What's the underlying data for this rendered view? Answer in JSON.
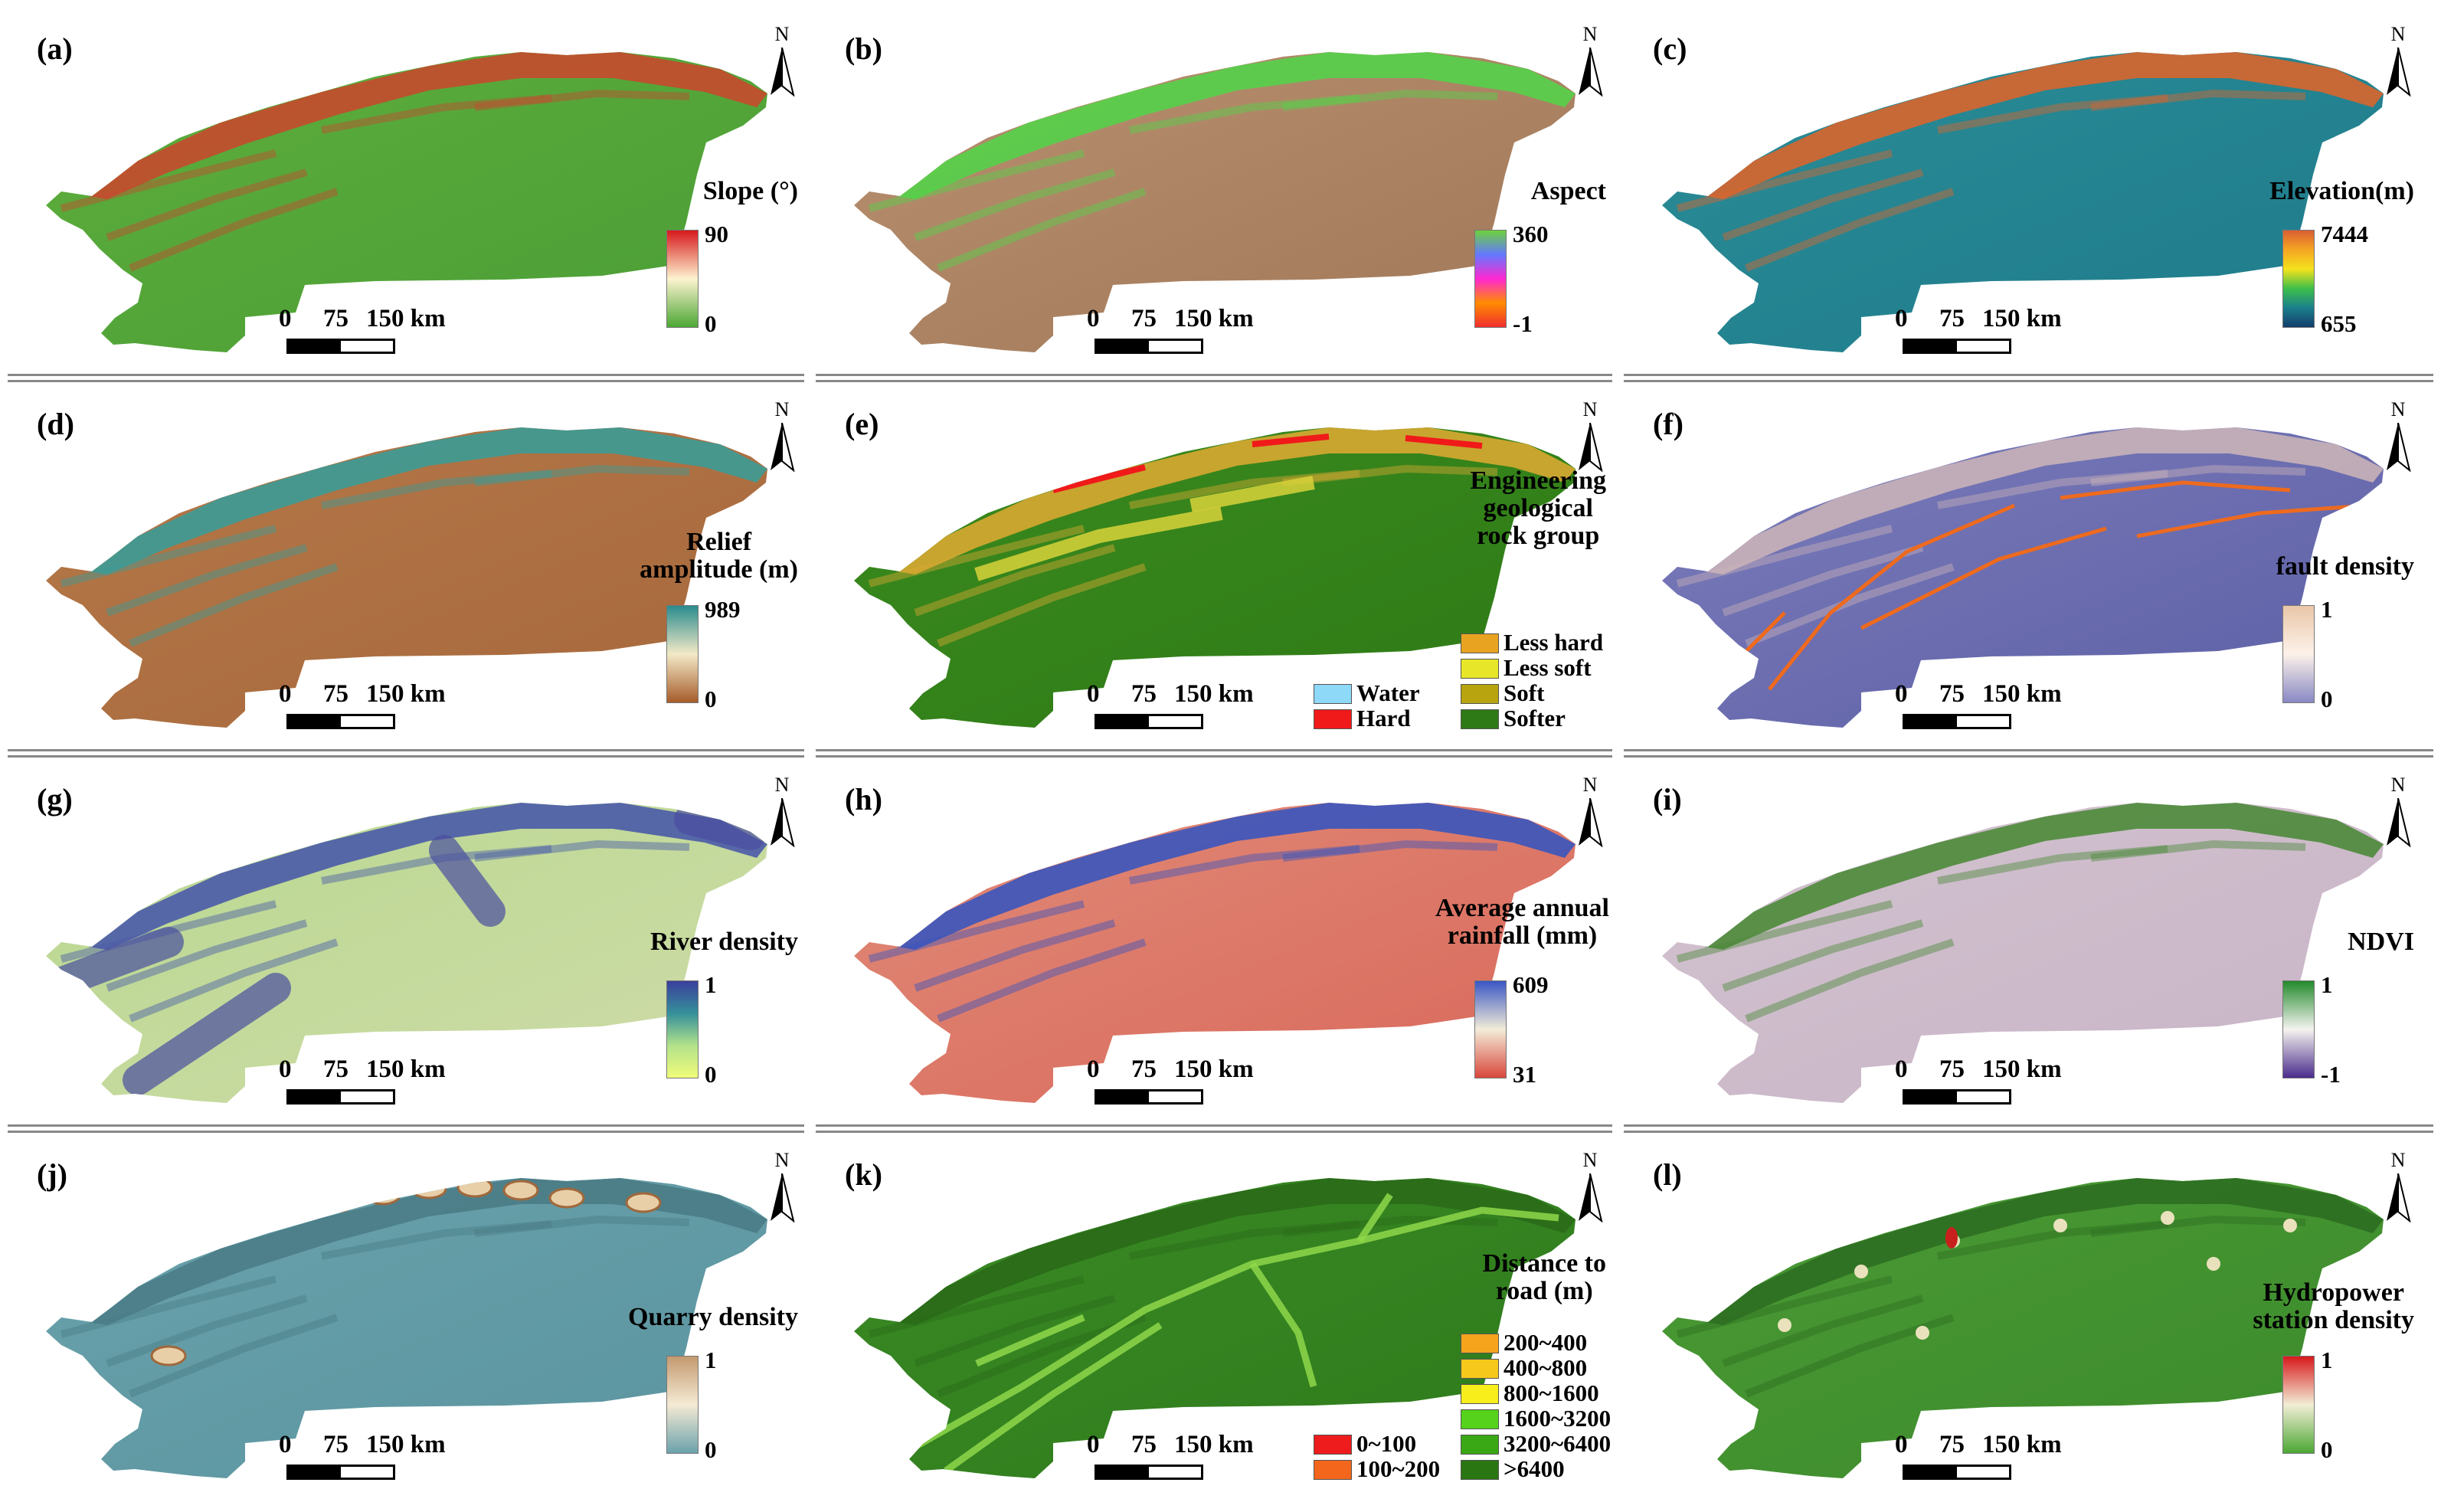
{
  "scale_bar": {
    "label_0": "0",
    "label_75": "75",
    "label_150": "150 km"
  },
  "north_label": "N",
  "panels": [
    {
      "id": "a",
      "label": "(a)",
      "legend": {
        "type": "ramp",
        "title": [
          "Slope (°)"
        ],
        "max": "90",
        "min": "0",
        "colors": [
          "#d7191c",
          "#fdf3d0",
          "#4ca734"
        ]
      },
      "fill": [
        "#4a9d36",
        "#5eae3c"
      ],
      "ridge": "#c54a2e"
    },
    {
      "id": "b",
      "label": "(b)",
      "legend": {
        "type": "ramp",
        "title": [
          "Aspect"
        ],
        "max": "360",
        "min": "-1",
        "colors": [
          "#6ed23c",
          "#6478ff",
          "#ff28d2",
          "#ff8c00",
          "#f02d2d"
        ]
      },
      "fill": [
        "#a07858",
        "#b89070"
      ],
      "ridge": "#55d24a"
    },
    {
      "id": "c",
      "label": "(c)",
      "legend": {
        "type": "ramp",
        "title": [
          "Elevation(m)"
        ],
        "max": "7444",
        "min": "655",
        "colors": [
          "#d95f33",
          "#f5a623",
          "#f4e21c",
          "#3dbf4a",
          "#1b7f8c",
          "#123e6b"
        ]
      },
      "fill": [
        "#1f7b8b",
        "#2a8c96"
      ],
      "ridge": "#d9652e"
    },
    {
      "id": "d",
      "label": "(d)",
      "legend": {
        "type": "ramp",
        "title": [
          "Relief",
          "amplitude (m)"
        ],
        "max": "989",
        "min": "0",
        "colors": [
          "#2a8b8e",
          "#f3e9c6",
          "#a65c2a"
        ]
      },
      "fill": [
        "#a6683c",
        "#b57848"
      ],
      "ridge": "#3c9b96"
    },
    {
      "id": "e",
      "label": "(e)",
      "legend": {
        "type": "categorical",
        "title": [
          "Engineering",
          "geological",
          "rock group"
        ],
        "items": [
          {
            "label": "Less hard",
            "color": "#e8a420"
          },
          {
            "label": "Less soft",
            "color": "#e8e628"
          },
          {
            "label": "Soft",
            "color": "#b8a40e"
          },
          {
            "label": "Softer",
            "color": "#2e7a16"
          }
        ],
        "items_left": [
          {
            "label": "Water",
            "color": "#8ed8f8"
          },
          {
            "label": "Hard",
            "color": "#f01a1a"
          }
        ]
      },
      "fill": [
        "#2e7a16",
        "#3a8a1e"
      ],
      "ridge": "#d8a832"
    },
    {
      "id": "f",
      "label": "(f)",
      "legend": {
        "type": "ramp",
        "title": [
          "fault density"
        ],
        "max": "1",
        "min": "0",
        "colors": [
          "#e9c6a8",
          "#fdf2ea",
          "#8888c4"
        ]
      },
      "fill": [
        "#5d5fa6",
        "#7a7cba"
      ],
      "ridge": "#c9b2b8"
    },
    {
      "id": "g",
      "label": "(g)",
      "legend": {
        "type": "ramp",
        "title": [
          "River density"
        ],
        "max": "1",
        "min": "0",
        "colors": [
          "#3b3f9c",
          "#35909a",
          "#b2e28a",
          "#f1fc7a"
        ]
      },
      "fill": [
        "#cfdba8",
        "#b8d890"
      ],
      "ridge": "#4a5aa8"
    },
    {
      "id": "h",
      "label": "(h)",
      "legend": {
        "type": "title-ramp",
        "title": [
          "Average annual",
          "rainfall (mm)"
        ],
        "max": "609",
        "min": "31",
        "colors": [
          "#3a57c4",
          "#f3ecd8",
          "#d9473c"
        ]
      },
      "fill": [
        "#d9685a",
        "#e08a78"
      ],
      "ridge": "#3a55bd"
    },
    {
      "id": "i",
      "label": "(i)",
      "legend": {
        "type": "ramp",
        "title": [
          "NDVI"
        ],
        "max": "1",
        "min": "-1",
        "colors": [
          "#238a2c",
          "#f5f3f0",
          "#4b2c8c"
        ]
      },
      "fill": [
        "#c8b4c6",
        "#d2c2cf"
      ],
      "ridge": "#4c8a3a"
    },
    {
      "id": "j",
      "label": "(j)",
      "legend": {
        "type": "ramp",
        "title": [
          "Quarry density"
        ],
        "max": "1",
        "min": "0",
        "colors": [
          "#c39a70",
          "#f5ead4",
          "#6ba2ac"
        ]
      },
      "fill": [
        "#5a949e",
        "#6aa2ac"
      ],
      "ridge": "#4a7c86"
    },
    {
      "id": "k",
      "label": "(k)",
      "legend": {
        "type": "categorical",
        "title": [
          "Distance to",
          "road (m)"
        ],
        "items": [
          {
            "label": "200~400",
            "color": "#f5a41c"
          },
          {
            "label": "400~800",
            "color": "#f7c81c"
          },
          {
            "label": "800~1600",
            "color": "#f7ee1c"
          },
          {
            "label": "1600~3200",
            "color": "#56d21c"
          },
          {
            "label": "3200~6400",
            "color": "#3aa814"
          },
          {
            "label": ">6400",
            "color": "#2a7612"
          }
        ],
        "items_left": [
          {
            "label": "0~100",
            "color": "#ee1c1c"
          },
          {
            "label": "100~200",
            "color": "#f4661c"
          }
        ]
      },
      "fill": [
        "#2e7a1c",
        "#3a8a24"
      ],
      "ridge": "#2a6a18"
    },
    {
      "id": "l",
      "label": "(l)",
      "legend": {
        "type": "ramp",
        "title": [
          "Hydropower",
          "station density"
        ],
        "max": "1",
        "min": "0",
        "colors": [
          "#d7191c",
          "#f2eed6",
          "#4ca734"
        ]
      },
      "fill": [
        "#3c8a2c",
        "#4a9a34"
      ],
      "ridge": "#2e6e22"
    }
  ]
}
